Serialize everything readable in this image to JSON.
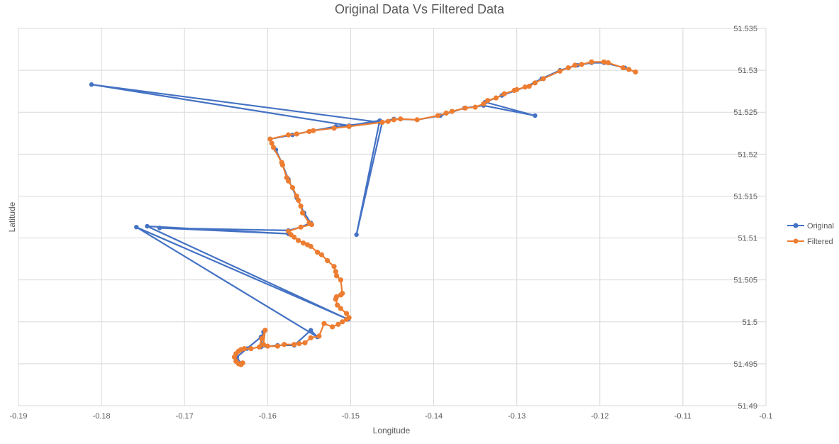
{
  "chart_data": {
    "type": "scatter",
    "title": "Original Data Vs Filtered Data",
    "xlabel": "Longitude",
    "ylabel": "Latitude",
    "xlim": [
      -0.19,
      -0.1
    ],
    "ylim": [
      51.49,
      51.535
    ],
    "x_ticks": [
      "-0.19",
      "-0.18",
      "-0.17",
      "-0.16",
      "-0.15",
      "-0.14",
      "-0.13",
      "-0.12",
      "-0.11",
      "-0.1"
    ],
    "y_ticks": [
      "51.49",
      "51.495",
      "51.5",
      "51.505",
      "51.51",
      "51.515",
      "51.52",
      "51.525",
      "51.53",
      "51.535"
    ],
    "grid": true,
    "y_axis_position": "right",
    "legend_position": "right",
    "series": [
      {
        "name": "Original",
        "color": "#4472c4",
        "points": [
          [
            -0.1157,
            51.5298
          ],
          [
            -0.117,
            51.5303
          ],
          [
            -0.1195,
            51.5309
          ],
          [
            -0.121,
            51.5309
          ],
          [
            -0.1227,
            51.5306
          ],
          [
            -0.1248,
            51.53
          ],
          [
            -0.127,
            51.529
          ],
          [
            -0.129,
            51.528
          ],
          [
            -0.1318,
            51.527
          ],
          [
            -0.1338,
            51.5262
          ],
          [
            -0.1278,
            51.5246
          ],
          [
            -0.134,
            51.5258
          ],
          [
            -0.1363,
            51.5255
          ],
          [
            -0.1392,
            51.5246
          ],
          [
            -0.142,
            51.5241
          ],
          [
            -0.1448,
            51.5242
          ],
          [
            -0.1462,
            51.5238
          ],
          [
            -0.1493,
            51.5104
          ],
          [
            -0.1465,
            51.524
          ],
          [
            -0.1502,
            51.5234
          ],
          [
            -0.1812,
            51.5283
          ],
          [
            -0.1465,
            51.5238
          ],
          [
            -0.1518,
            51.5233
          ],
          [
            -0.1545,
            51.5228
          ],
          [
            -0.157,
            51.5223
          ],
          [
            -0.1597,
            51.5218
          ],
          [
            -0.159,
            51.5205
          ],
          [
            -0.1583,
            51.519
          ],
          [
            -0.1575,
            51.517
          ],
          [
            -0.1565,
            51.5148
          ],
          [
            -0.1556,
            51.513
          ],
          [
            -0.1548,
            51.5118
          ],
          [
            -0.156,
            51.5113
          ],
          [
            -0.1575,
            51.5109
          ],
          [
            -0.173,
            51.5112
          ],
          [
            -0.1575,
            51.5105
          ],
          [
            -0.1745,
            51.5114
          ],
          [
            -0.1503,
            51.5003
          ],
          [
            -0.1758,
            51.5113
          ],
          [
            -0.154,
            51.4982
          ],
          [
            -0.1548,
            51.499
          ],
          [
            -0.1568,
            51.4972
          ],
          [
            -0.1588,
            51.4972
          ],
          [
            -0.1608,
            51.497
          ],
          [
            -0.1605,
            51.4988
          ],
          [
            -0.1608,
            51.4982
          ],
          [
            -0.1625,
            51.4968
          ],
          [
            -0.1637,
            51.4958
          ],
          [
            -0.1632,
            51.495
          ]
        ]
      },
      {
        "name": "Filtered",
        "color": "#ed7d31",
        "points": [
          [
            -0.1157,
            51.5298
          ],
          [
            -0.1165,
            51.5301
          ],
          [
            -0.1172,
            51.5303
          ],
          [
            -0.119,
            51.5309
          ],
          [
            -0.1195,
            51.531
          ],
          [
            -0.121,
            51.531
          ],
          [
            -0.1222,
            51.5307
          ],
          [
            -0.123,
            51.5306
          ],
          [
            -0.1238,
            51.5303
          ],
          [
            -0.1248,
            51.5299
          ],
          [
            -0.1268,
            51.529
          ],
          [
            -0.1278,
            51.5285
          ],
          [
            -0.1285,
            51.5281
          ],
          [
            -0.129,
            51.528
          ],
          [
            -0.13,
            51.5277
          ],
          [
            -0.1303,
            51.5276
          ],
          [
            -0.1315,
            51.5272
          ],
          [
            -0.1325,
            51.5267
          ],
          [
            -0.1335,
            51.5264
          ],
          [
            -0.134,
            51.526
          ],
          [
            -0.135,
            51.5256
          ],
          [
            -0.1362,
            51.5255
          ],
          [
            -0.1378,
            51.5251
          ],
          [
            -0.1385,
            51.5249
          ],
          [
            -0.1395,
            51.5246
          ],
          [
            -0.142,
            51.5241
          ],
          [
            -0.144,
            51.5242
          ],
          [
            -0.1448,
            51.5241
          ],
          [
            -0.1455,
            51.5239
          ],
          [
            -0.1462,
            51.5238
          ],
          [
            -0.1502,
            51.5233
          ],
          [
            -0.152,
            51.5231
          ],
          [
            -0.1545,
            51.5228
          ],
          [
            -0.155,
            51.5227
          ],
          [
            -0.1565,
            51.5224
          ],
          [
            -0.1575,
            51.5223
          ],
          [
            -0.1597,
            51.5218
          ],
          [
            -0.1595,
            51.5213
          ],
          [
            -0.1593,
            51.5208
          ],
          [
            -0.1583,
            51.519
          ],
          [
            -0.1582,
            51.5187
          ],
          [
            -0.1577,
            51.5172
          ],
          [
            -0.1575,
            51.5168
          ],
          [
            -0.157,
            51.516
          ],
          [
            -0.1565,
            51.515
          ],
          [
            -0.1563,
            51.5145
          ],
          [
            -0.156,
            51.5138
          ],
          [
            -0.1558,
            51.513
          ],
          [
            -0.155,
            51.5118
          ],
          [
            -0.1547,
            51.5116
          ],
          [
            -0.156,
            51.5113
          ],
          [
            -0.1575,
            51.5108
          ],
          [
            -0.1572,
            51.5104
          ],
          [
            -0.1568,
            51.5101
          ],
          [
            -0.1563,
            51.5097
          ],
          [
            -0.1557,
            51.5094
          ],
          [
            -0.1552,
            51.5092
          ],
          [
            -0.1548,
            51.509
          ],
          [
            -0.154,
            51.5083
          ],
          [
            -0.1535,
            51.508
          ],
          [
            -0.1528,
            51.5073
          ],
          [
            -0.152,
            51.5066
          ],
          [
            -0.1518,
            51.506
          ],
          [
            -0.1517,
            51.5055
          ],
          [
            -0.1512,
            51.505
          ],
          [
            -0.151,
            51.5034
          ],
          [
            -0.1512,
            51.5032
          ],
          [
            -0.1517,
            51.503
          ],
          [
            -0.1518,
            51.5027
          ],
          [
            -0.1516,
            51.502
          ],
          [
            -0.1512,
            51.5016
          ],
          [
            -0.1505,
            51.501
          ],
          [
            -0.1502,
            51.5005
          ],
          [
            -0.1505,
            51.5003
          ],
          [
            -0.151,
            51.5
          ],
          [
            -0.1515,
            51.4997
          ],
          [
            -0.1522,
            51.4994
          ],
          [
            -0.1532,
            51.4998
          ],
          [
            -0.1538,
            51.4983
          ],
          [
            -0.1548,
            51.4981
          ],
          [
            -0.1555,
            51.4975
          ],
          [
            -0.1562,
            51.4974
          ],
          [
            -0.1568,
            51.4973
          ],
          [
            -0.158,
            51.4973
          ],
          [
            -0.1588,
            51.4971
          ],
          [
            -0.16,
            51.4971
          ],
          [
            -0.1605,
            51.4973
          ],
          [
            -0.1603,
            51.499
          ],
          [
            -0.1607,
            51.498
          ],
          [
            -0.161,
            51.497
          ],
          [
            -0.162,
            51.4968
          ],
          [
            -0.1628,
            51.4968
          ],
          [
            -0.1632,
            51.4967
          ],
          [
            -0.1635,
            51.4965
          ],
          [
            -0.1638,
            51.4962
          ],
          [
            -0.164,
            51.4958
          ],
          [
            -0.1638,
            51.4953
          ],
          [
            -0.1635,
            51.495
          ],
          [
            -0.1632,
            51.4949
          ],
          [
            -0.163,
            51.4951
          ]
        ]
      }
    ]
  }
}
